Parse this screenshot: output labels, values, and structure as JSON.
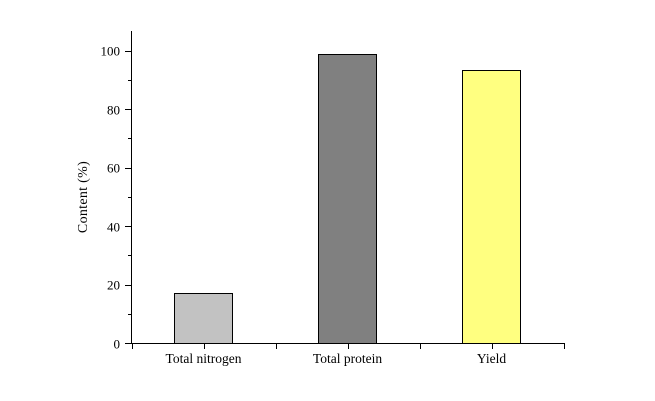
{
  "chart_data": {
    "type": "bar",
    "title": "",
    "categories": [
      "Total nitrogen",
      "Total protein",
      "Yield"
    ],
    "values": [
      17.1,
      98.8,
      93.4
    ],
    "bar_colors": [
      "#c2c2c2",
      "#808080",
      "#ffff80"
    ],
    "bar_border_color": "#000000",
    "xlabel": "",
    "ylabel": "Content (%)",
    "ylim": [
      0,
      106
    ],
    "yticks": [
      0,
      20,
      40,
      60,
      80,
      100
    ],
    "minor_ytick_step": 10,
    "grid": false,
    "legend": "none",
    "background_color": "#ffffff",
    "axis_color": "#000000",
    "text_color": "#000000"
  }
}
